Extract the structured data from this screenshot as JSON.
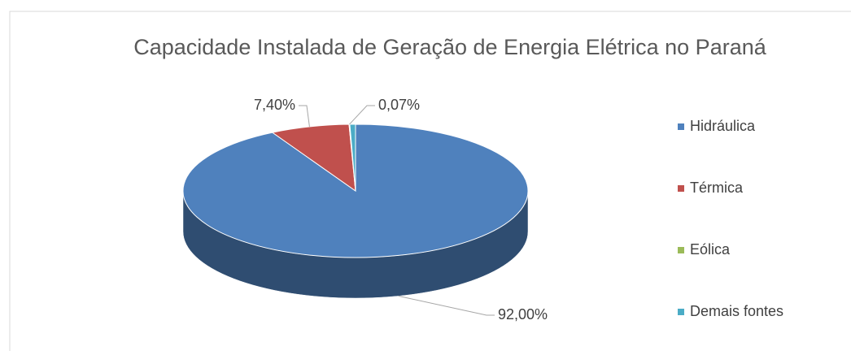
{
  "chart_data": {
    "type": "pie3d",
    "title": "Capacidade Instalada de Geração de Energia Elétrica no Paraná",
    "categories": [
      "Hidráulica",
      "Térmica",
      "Eólica",
      "Demais fontes"
    ],
    "values": [
      92.0,
      7.4,
      0.07,
      0.53
    ],
    "value_labels": [
      "92,00%",
      "7,40%",
      "0,07%",
      null
    ],
    "colors": [
      "#4f81bd",
      "#c0504d",
      "#9bbb59",
      "#4bacc6"
    ],
    "legend": "right"
  }
}
